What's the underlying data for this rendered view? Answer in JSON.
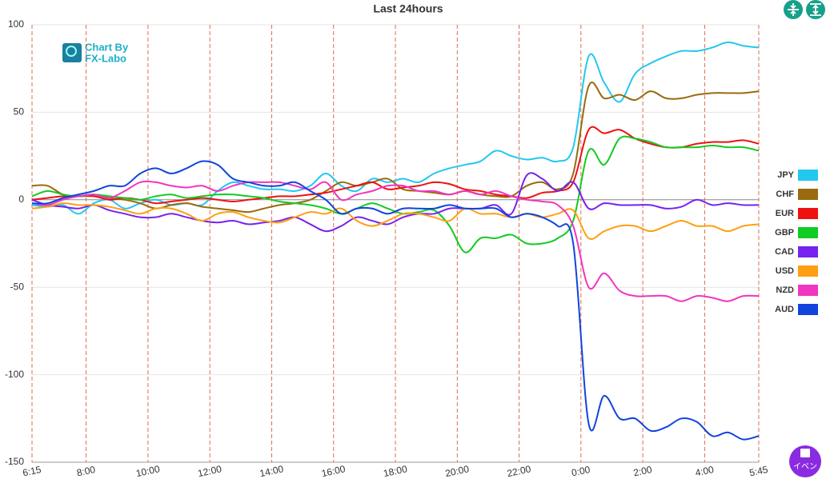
{
  "chart_data": {
    "type": "line",
    "title": "Last 24hours",
    "watermark": [
      "Chart By",
      "FX-Labo"
    ],
    "event_button": "イベン",
    "x": [
      0,
      0.5,
      1,
      1.5,
      2,
      2.5,
      3,
      3.5,
      4,
      4.5,
      5,
      5.5,
      6,
      6.5,
      7,
      7.5,
      8,
      8.5,
      9,
      9.5,
      10,
      10.5,
      11,
      11.5,
      12,
      12.5,
      13,
      13.5,
      14,
      14.5,
      15,
      15.5,
      16,
      16.5,
      17,
      17.5,
      18,
      18.5,
      19,
      19.5,
      20,
      20.5,
      21,
      21.5,
      22,
      22.5,
      23,
      23.5
    ],
    "xlim": [
      0,
      23.5
    ],
    "xticks": [
      {
        "value": 0,
        "label": "6:15"
      },
      {
        "value": 1.75,
        "label": "8:00"
      },
      {
        "value": 3.75,
        "label": "10:00"
      },
      {
        "value": 5.75,
        "label": "12:00"
      },
      {
        "value": 7.75,
        "label": "14:00"
      },
      {
        "value": 9.75,
        "label": "16:00"
      },
      {
        "value": 11.75,
        "label": "18:00"
      },
      {
        "value": 13.75,
        "label": "20:00"
      },
      {
        "value": 15.75,
        "label": "22:00"
      },
      {
        "value": 17.75,
        "label": "0:00"
      },
      {
        "value": 19.75,
        "label": "2:00"
      },
      {
        "value": 21.75,
        "label": "4:00"
      },
      {
        "value": 23.5,
        "label": "5:45"
      }
    ],
    "ylim": [
      -150,
      100
    ],
    "yticks": [
      100,
      50,
      0,
      -50,
      -100,
      -150
    ],
    "grid": true,
    "legend": "right",
    "series": [
      {
        "name": "JPY",
        "color": "#22c8ef",
        "values": [
          -3,
          -4,
          -3,
          -8,
          -2,
          0,
          -5,
          -2,
          0,
          -3,
          -2,
          -3,
          5,
          10,
          8,
          6,
          6,
          5,
          8,
          15,
          8,
          5,
          12,
          10,
          12,
          10,
          15,
          18,
          20,
          22,
          28,
          25,
          23,
          24,
          22,
          30,
          82,
          67,
          56,
          72,
          78,
          82,
          85,
          85,
          87,
          90,
          88,
          87
        ]
      },
      {
        "name": "CHF",
        "color": "#9a6a0e",
        "values": [
          8,
          8,
          3,
          2,
          3,
          1,
          0,
          -2,
          -5,
          -3,
          -2,
          -4,
          -5,
          -6,
          -7,
          -5,
          -3,
          -2,
          0,
          5,
          10,
          8,
          10,
          12,
          6,
          5,
          4,
          3,
          5,
          3,
          2,
          2,
          8,
          10,
          6,
          15,
          65,
          58,
          60,
          57,
          62,
          58,
          58,
          60,
          61,
          61,
          61,
          62
        ]
      },
      {
        "name": "EUR",
        "color": "#ee1111",
        "values": [
          0,
          1,
          2,
          2,
          2,
          0,
          1,
          0,
          -2,
          -1,
          0,
          1,
          0,
          -1,
          0,
          1,
          2,
          2,
          3,
          4,
          6,
          8,
          10,
          6,
          7,
          8,
          10,
          9,
          6,
          5,
          3,
          2,
          1,
          4,
          5,
          10,
          40,
          38,
          40,
          35,
          32,
          30,
          30,
          32,
          33,
          33,
          34,
          32
        ]
      },
      {
        "name": "GBP",
        "color": "#11cc22",
        "values": [
          2,
          5,
          3,
          2,
          3,
          2,
          1,
          0,
          2,
          3,
          1,
          2,
          3,
          3,
          2,
          1,
          -1,
          -2,
          -3,
          -5,
          -8,
          -5,
          -2,
          -5,
          -8,
          -7,
          -6,
          -15,
          -30,
          -22,
          -22,
          -20,
          -25,
          -25,
          -22,
          -12,
          28,
          20,
          35,
          35,
          33,
          30,
          30,
          30,
          31,
          30,
          30,
          28
        ]
      },
      {
        "name": "CAD",
        "color": "#7722ee",
        "values": [
          0,
          -3,
          -4,
          -5,
          -3,
          -6,
          -8,
          -10,
          -10,
          -8,
          -10,
          -12,
          -13,
          -12,
          -14,
          -13,
          -12,
          -10,
          -14,
          -18,
          -15,
          -10,
          -12,
          -14,
          -10,
          -8,
          -8,
          -5,
          -5,
          -5,
          -3,
          -8,
          14,
          12,
          5,
          10,
          -5,
          -2,
          -3,
          -3,
          -3,
          -5,
          -4,
          0,
          -3,
          -2,
          -3,
          -3
        ]
      },
      {
        "name": "USD",
        "color": "#ff9f11",
        "values": [
          -5,
          -4,
          -2,
          -3,
          -3,
          -4,
          -6,
          -8,
          -5,
          -5,
          -8,
          -12,
          -8,
          -7,
          -10,
          -12,
          -13,
          -10,
          -7,
          -8,
          -5,
          -12,
          -15,
          -12,
          -8,
          -8,
          -10,
          -12,
          -5,
          -8,
          -8,
          -10,
          -8,
          -10,
          -8,
          -6,
          -22,
          -18,
          -15,
          -15,
          -18,
          -15,
          -12,
          -15,
          -15,
          -18,
          -15,
          -14
        ]
      },
      {
        "name": "NZD",
        "color": "#f036c0",
        "values": [
          -2,
          -3,
          0,
          2,
          3,
          1,
          5,
          10,
          10,
          8,
          7,
          8,
          5,
          8,
          10,
          10,
          10,
          8,
          6,
          10,
          0,
          3,
          5,
          8,
          8,
          5,
          5,
          3,
          5,
          3,
          5,
          2,
          0,
          -1,
          -3,
          -15,
          -50,
          -42,
          -52,
          -55,
          -55,
          -55,
          -58,
          -55,
          -56,
          -58,
          -55,
          -55
        ]
      },
      {
        "name": "AUD",
        "color": "#1144dd",
        "values": [
          -2,
          -2,
          1,
          3,
          5,
          8,
          8,
          15,
          18,
          15,
          18,
          22,
          20,
          12,
          10,
          8,
          8,
          10,
          5,
          0,
          -8,
          -5,
          -5,
          -8,
          -5,
          -5,
          -5,
          -3,
          -5,
          -5,
          -5,
          -10,
          -8,
          -10,
          -15,
          -25,
          -128,
          -112,
          -125,
          -125,
          -132,
          -130,
          -125,
          -127,
          -135,
          -133,
          -137,
          -135
        ]
      }
    ]
  }
}
